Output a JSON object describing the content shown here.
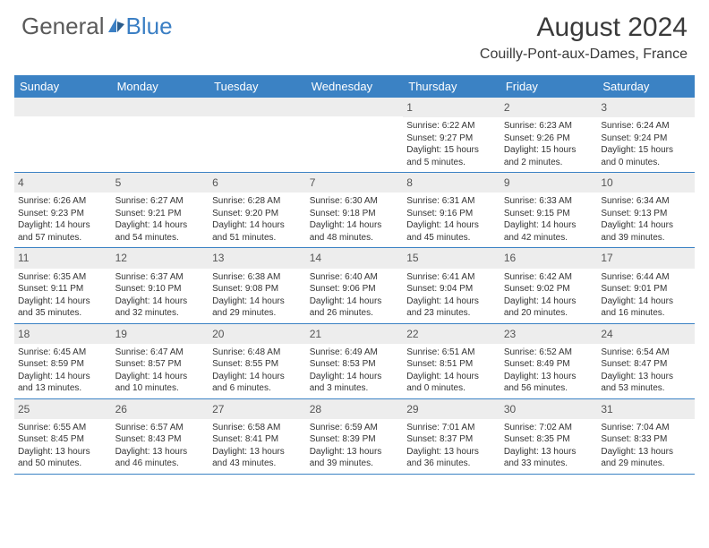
{
  "logo": {
    "text_general": "General",
    "text_blue": "Blue",
    "brand_color": "#3b7fc4"
  },
  "title": "August 2024",
  "subtitle": "Couilly-Pont-aux-Dames, France",
  "colors": {
    "header_bg": "#3b82c4",
    "header_text": "#ffffff",
    "daynum_bg": "#ededed",
    "border": "#3b82c4",
    "body_text": "#333333",
    "title_text": "#3a3a3a"
  },
  "day_names": [
    "Sunday",
    "Monday",
    "Tuesday",
    "Wednesday",
    "Thursday",
    "Friday",
    "Saturday"
  ],
  "weeks": [
    [
      {
        "day": "",
        "sunrise": "",
        "sunset": "",
        "daylight1": "",
        "daylight2": ""
      },
      {
        "day": "",
        "sunrise": "",
        "sunset": "",
        "daylight1": "",
        "daylight2": ""
      },
      {
        "day": "",
        "sunrise": "",
        "sunset": "",
        "daylight1": "",
        "daylight2": ""
      },
      {
        "day": "",
        "sunrise": "",
        "sunset": "",
        "daylight1": "",
        "daylight2": ""
      },
      {
        "day": "1",
        "sunrise": "Sunrise: 6:22 AM",
        "sunset": "Sunset: 9:27 PM",
        "daylight1": "Daylight: 15 hours",
        "daylight2": "and 5 minutes."
      },
      {
        "day": "2",
        "sunrise": "Sunrise: 6:23 AM",
        "sunset": "Sunset: 9:26 PM",
        "daylight1": "Daylight: 15 hours",
        "daylight2": "and 2 minutes."
      },
      {
        "day": "3",
        "sunrise": "Sunrise: 6:24 AM",
        "sunset": "Sunset: 9:24 PM",
        "daylight1": "Daylight: 15 hours",
        "daylight2": "and 0 minutes."
      }
    ],
    [
      {
        "day": "4",
        "sunrise": "Sunrise: 6:26 AM",
        "sunset": "Sunset: 9:23 PM",
        "daylight1": "Daylight: 14 hours",
        "daylight2": "and 57 minutes."
      },
      {
        "day": "5",
        "sunrise": "Sunrise: 6:27 AM",
        "sunset": "Sunset: 9:21 PM",
        "daylight1": "Daylight: 14 hours",
        "daylight2": "and 54 minutes."
      },
      {
        "day": "6",
        "sunrise": "Sunrise: 6:28 AM",
        "sunset": "Sunset: 9:20 PM",
        "daylight1": "Daylight: 14 hours",
        "daylight2": "and 51 minutes."
      },
      {
        "day": "7",
        "sunrise": "Sunrise: 6:30 AM",
        "sunset": "Sunset: 9:18 PM",
        "daylight1": "Daylight: 14 hours",
        "daylight2": "and 48 minutes."
      },
      {
        "day": "8",
        "sunrise": "Sunrise: 6:31 AM",
        "sunset": "Sunset: 9:16 PM",
        "daylight1": "Daylight: 14 hours",
        "daylight2": "and 45 minutes."
      },
      {
        "day": "9",
        "sunrise": "Sunrise: 6:33 AM",
        "sunset": "Sunset: 9:15 PM",
        "daylight1": "Daylight: 14 hours",
        "daylight2": "and 42 minutes."
      },
      {
        "day": "10",
        "sunrise": "Sunrise: 6:34 AM",
        "sunset": "Sunset: 9:13 PM",
        "daylight1": "Daylight: 14 hours",
        "daylight2": "and 39 minutes."
      }
    ],
    [
      {
        "day": "11",
        "sunrise": "Sunrise: 6:35 AM",
        "sunset": "Sunset: 9:11 PM",
        "daylight1": "Daylight: 14 hours",
        "daylight2": "and 35 minutes."
      },
      {
        "day": "12",
        "sunrise": "Sunrise: 6:37 AM",
        "sunset": "Sunset: 9:10 PM",
        "daylight1": "Daylight: 14 hours",
        "daylight2": "and 32 minutes."
      },
      {
        "day": "13",
        "sunrise": "Sunrise: 6:38 AM",
        "sunset": "Sunset: 9:08 PM",
        "daylight1": "Daylight: 14 hours",
        "daylight2": "and 29 minutes."
      },
      {
        "day": "14",
        "sunrise": "Sunrise: 6:40 AM",
        "sunset": "Sunset: 9:06 PM",
        "daylight1": "Daylight: 14 hours",
        "daylight2": "and 26 minutes."
      },
      {
        "day": "15",
        "sunrise": "Sunrise: 6:41 AM",
        "sunset": "Sunset: 9:04 PM",
        "daylight1": "Daylight: 14 hours",
        "daylight2": "and 23 minutes."
      },
      {
        "day": "16",
        "sunrise": "Sunrise: 6:42 AM",
        "sunset": "Sunset: 9:02 PM",
        "daylight1": "Daylight: 14 hours",
        "daylight2": "and 20 minutes."
      },
      {
        "day": "17",
        "sunrise": "Sunrise: 6:44 AM",
        "sunset": "Sunset: 9:01 PM",
        "daylight1": "Daylight: 14 hours",
        "daylight2": "and 16 minutes."
      }
    ],
    [
      {
        "day": "18",
        "sunrise": "Sunrise: 6:45 AM",
        "sunset": "Sunset: 8:59 PM",
        "daylight1": "Daylight: 14 hours",
        "daylight2": "and 13 minutes."
      },
      {
        "day": "19",
        "sunrise": "Sunrise: 6:47 AM",
        "sunset": "Sunset: 8:57 PM",
        "daylight1": "Daylight: 14 hours",
        "daylight2": "and 10 minutes."
      },
      {
        "day": "20",
        "sunrise": "Sunrise: 6:48 AM",
        "sunset": "Sunset: 8:55 PM",
        "daylight1": "Daylight: 14 hours",
        "daylight2": "and 6 minutes."
      },
      {
        "day": "21",
        "sunrise": "Sunrise: 6:49 AM",
        "sunset": "Sunset: 8:53 PM",
        "daylight1": "Daylight: 14 hours",
        "daylight2": "and 3 minutes."
      },
      {
        "day": "22",
        "sunrise": "Sunrise: 6:51 AM",
        "sunset": "Sunset: 8:51 PM",
        "daylight1": "Daylight: 14 hours",
        "daylight2": "and 0 minutes."
      },
      {
        "day": "23",
        "sunrise": "Sunrise: 6:52 AM",
        "sunset": "Sunset: 8:49 PM",
        "daylight1": "Daylight: 13 hours",
        "daylight2": "and 56 minutes."
      },
      {
        "day": "24",
        "sunrise": "Sunrise: 6:54 AM",
        "sunset": "Sunset: 8:47 PM",
        "daylight1": "Daylight: 13 hours",
        "daylight2": "and 53 minutes."
      }
    ],
    [
      {
        "day": "25",
        "sunrise": "Sunrise: 6:55 AM",
        "sunset": "Sunset: 8:45 PM",
        "daylight1": "Daylight: 13 hours",
        "daylight2": "and 50 minutes."
      },
      {
        "day": "26",
        "sunrise": "Sunrise: 6:57 AM",
        "sunset": "Sunset: 8:43 PM",
        "daylight1": "Daylight: 13 hours",
        "daylight2": "and 46 minutes."
      },
      {
        "day": "27",
        "sunrise": "Sunrise: 6:58 AM",
        "sunset": "Sunset: 8:41 PM",
        "daylight1": "Daylight: 13 hours",
        "daylight2": "and 43 minutes."
      },
      {
        "day": "28",
        "sunrise": "Sunrise: 6:59 AM",
        "sunset": "Sunset: 8:39 PM",
        "daylight1": "Daylight: 13 hours",
        "daylight2": "and 39 minutes."
      },
      {
        "day": "29",
        "sunrise": "Sunrise: 7:01 AM",
        "sunset": "Sunset: 8:37 PM",
        "daylight1": "Daylight: 13 hours",
        "daylight2": "and 36 minutes."
      },
      {
        "day": "30",
        "sunrise": "Sunrise: 7:02 AM",
        "sunset": "Sunset: 8:35 PM",
        "daylight1": "Daylight: 13 hours",
        "daylight2": "and 33 minutes."
      },
      {
        "day": "31",
        "sunrise": "Sunrise: 7:04 AM",
        "sunset": "Sunset: 8:33 PM",
        "daylight1": "Daylight: 13 hours",
        "daylight2": "and 29 minutes."
      }
    ]
  ]
}
